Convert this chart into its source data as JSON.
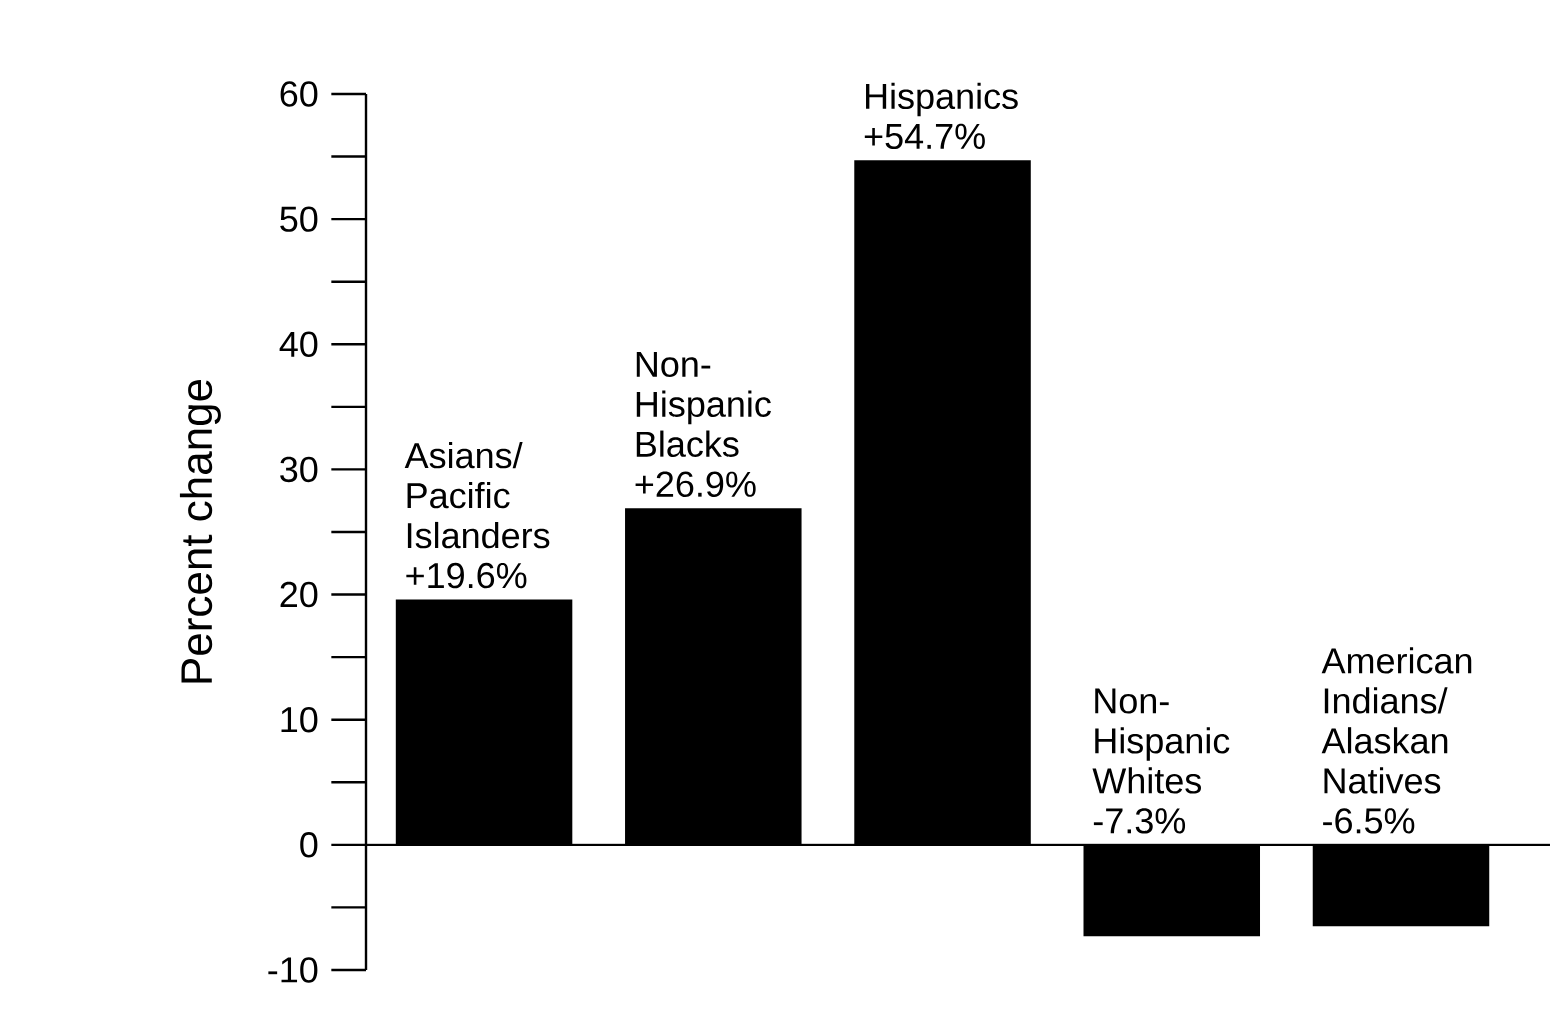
{
  "chart_data": {
    "type": "bar",
    "ylabel": "Percent change",
    "categories": [
      "Asians/ Pacific Islanders",
      "Non-Hispanic Blacks",
      "Hispanics",
      "Non-Hispanic Whites",
      "American Indians/ Alaskan Natives"
    ],
    "values": [
      19.6,
      26.9,
      54.7,
      -7.3,
      -6.5
    ],
    "value_labels": [
      "+19.6%",
      "+26.9%",
      "+54.7%",
      "-7.3%",
      "-6.5%"
    ],
    "color": "#000000",
    "ylim": [
      -10,
      60
    ],
    "yticks": [
      -10,
      0,
      10,
      20,
      30,
      40,
      50,
      60
    ],
    "grid": false,
    "tick_labels": "y"
  }
}
